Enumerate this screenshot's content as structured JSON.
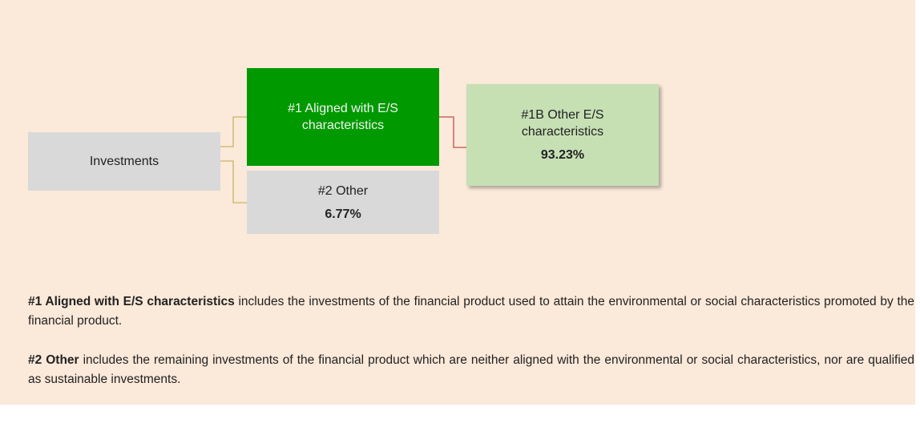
{
  "nodes": [
    {
      "label": "Investments"
    },
    {
      "label": "#1 Aligned with E/S characteristics"
    },
    {
      "label": "#2 Other",
      "value": "6.77%"
    },
    {
      "label": "#1B Other E/S characteristics",
      "value": "93.23%"
    }
  ],
  "notes": [
    {
      "term": "#1 Aligned with E/S characteristics",
      "text": " includes the investments of the financial product used to attain the environmental or social characteristics promoted by the financial product."
    },
    {
      "term": "#2 Other",
      "text": " includes the remaining investments of the financial product which are neither aligned with the environmental or social characteristics, nor are qualified as sustainable investments."
    }
  ]
}
